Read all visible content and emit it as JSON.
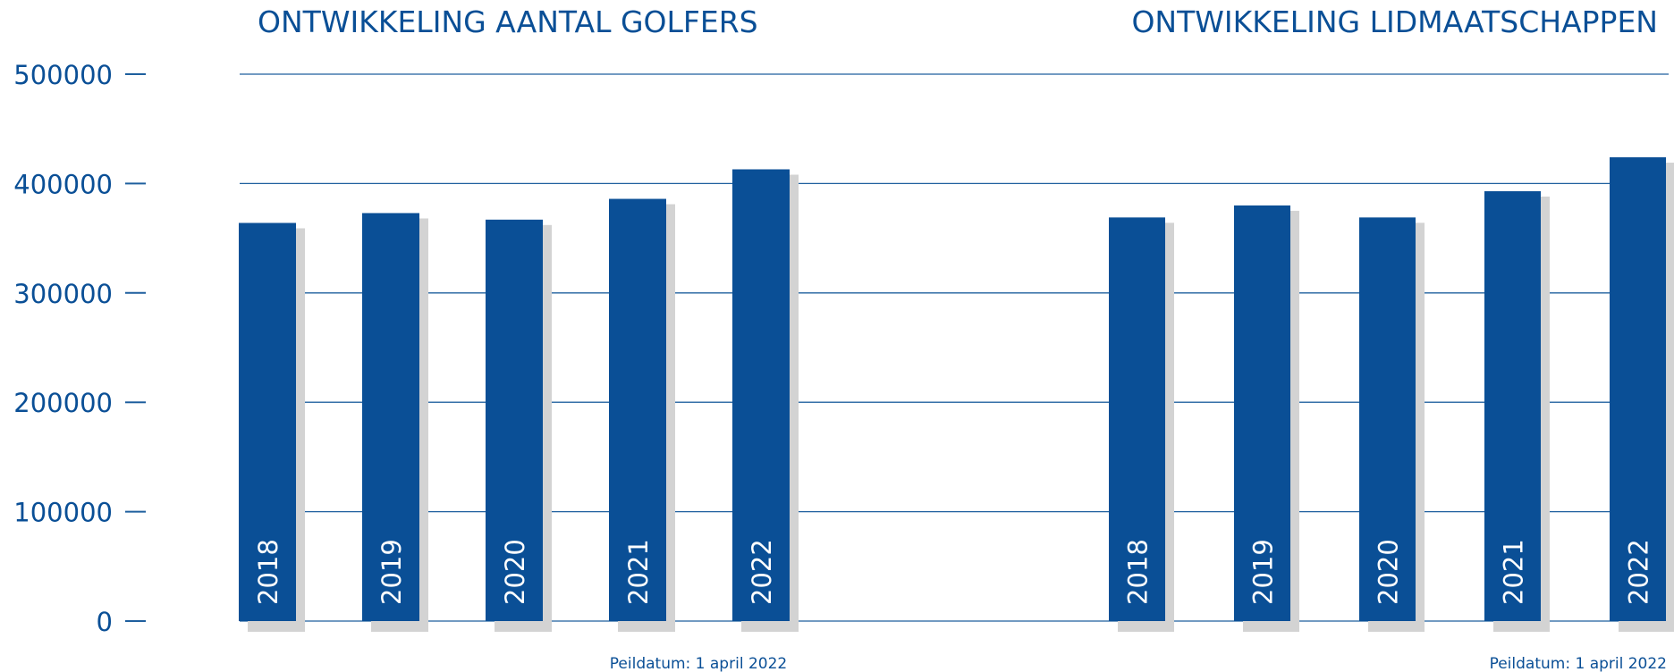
{
  "colors": {
    "bar": "#0a4f96",
    "shadow": "#d3d3d3",
    "text": "#0a4f96",
    "grid": "#1e5f9e",
    "bar_label": "#ffffff"
  },
  "y_axis": {
    "ticks": [
      "0",
      "100000",
      "200000",
      "300000",
      "400000",
      "500000"
    ]
  },
  "chart_data": [
    {
      "type": "bar",
      "title": "ONTWIKKELING AANTAL GOLFERS",
      "categories": [
        "2018",
        "2019",
        "2020",
        "2021",
        "2022"
      ],
      "values": [
        364000,
        373000,
        367000,
        386000,
        413000
      ],
      "ylim": [
        0,
        500000
      ],
      "grid": true,
      "footnote": "Peildatum: 1 april 2022"
    },
    {
      "type": "bar",
      "title": "ONTWIKKELING LIDMAATSCHAPPEN",
      "categories": [
        "2018",
        "2019",
        "2020",
        "2021",
        "2022"
      ],
      "values": [
        369000,
        380000,
        369000,
        393000,
        424000
      ],
      "ylim": [
        0,
        500000
      ],
      "grid": true,
      "footnote": "Peildatum: 1 april 2022"
    }
  ]
}
